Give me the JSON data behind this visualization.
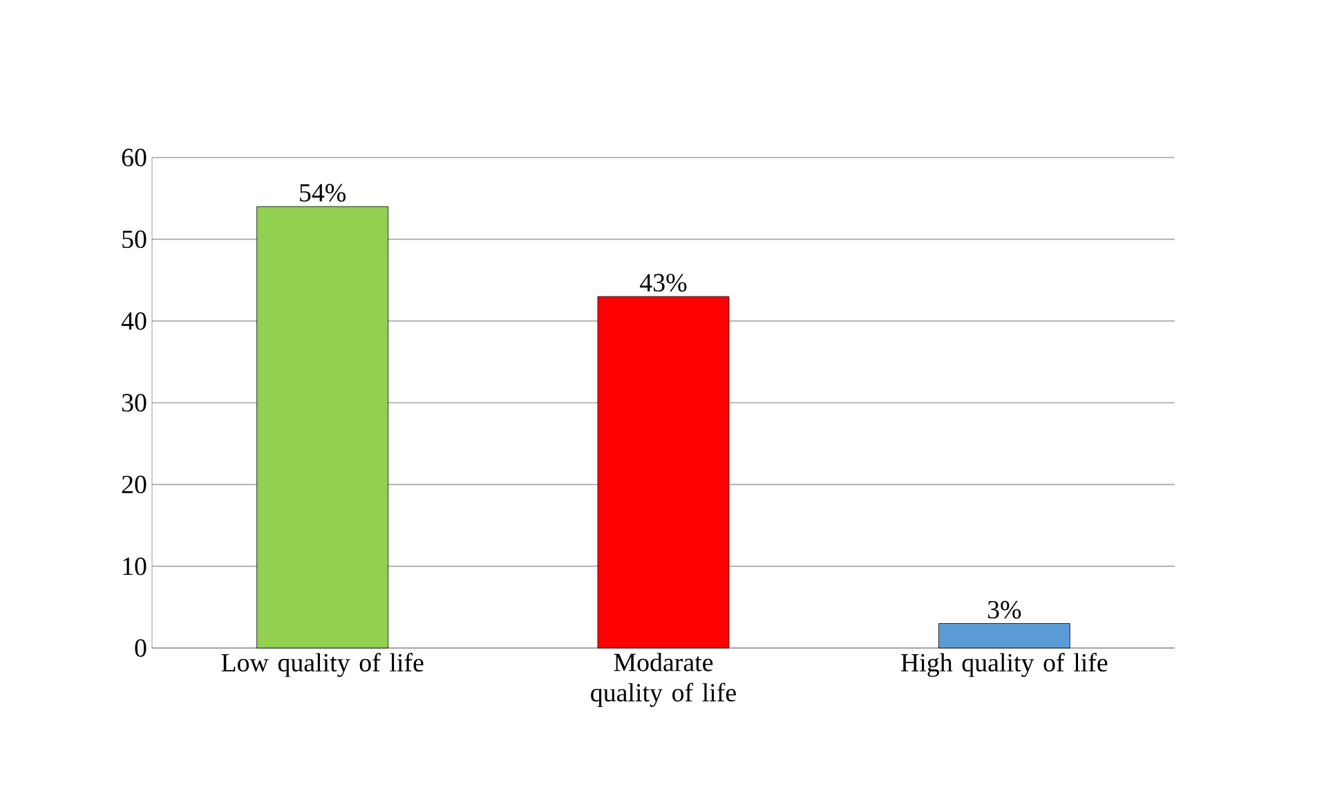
{
  "chart_data": {
    "type": "bar",
    "categories": [
      "Low quality of life",
      "Modarate quality of life",
      "High quality of life"
    ],
    "values": [
      54,
      43,
      3
    ],
    "value_labels": [
      "54%",
      "43%",
      "3%"
    ],
    "colors": [
      "#92d050",
      "#ff0000",
      "#5b9bd5"
    ],
    "ylim": [
      0,
      60
    ],
    "yticks": [
      0,
      10,
      20,
      30,
      40,
      50,
      60
    ],
    "grid": "y"
  }
}
